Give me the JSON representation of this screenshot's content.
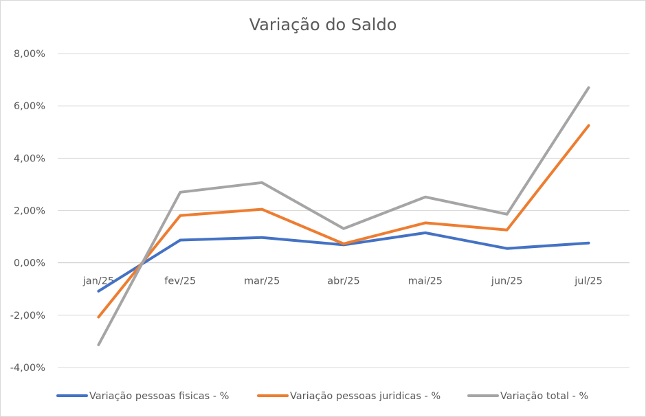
{
  "chart_data": {
    "type": "line",
    "title": "Variação do Saldo",
    "xlabel": "",
    "ylabel": "",
    "categories": [
      "jan/25",
      "fev/25",
      "mar/25",
      "abr/25",
      "mai/25",
      "jun/25",
      "jul/25"
    ],
    "ylim": [
      -0.04,
      0.08
    ],
    "yticks": [
      -0.04,
      -0.02,
      0.0,
      0.02,
      0.04,
      0.06,
      0.08
    ],
    "ytick_labels": [
      "-4,00%",
      "-2,00%",
      "0,00%",
      "2,00%",
      "4,00%",
      "6,00%",
      "8,00%"
    ],
    "grid": true,
    "legend_position": "bottom",
    "series": [
      {
        "name": "Variação pessoas fisicas - %",
        "color": "#4472C4",
        "values": [
          -0.0108,
          0.0087,
          0.0097,
          0.0069,
          0.0115,
          0.0055,
          0.0076
        ]
      },
      {
        "name": "Variação pessoas juridicas - %",
        "color": "#ED7D31",
        "values": [
          -0.0207,
          0.0181,
          0.0205,
          0.0073,
          0.0153,
          0.0126,
          0.0525
        ]
      },
      {
        "name": "Variação total - %",
        "color": "#A5A5A5",
        "values": [
          -0.0313,
          0.027,
          0.0307,
          0.0131,
          0.0252,
          0.0186,
          0.067
        ]
      }
    ]
  }
}
